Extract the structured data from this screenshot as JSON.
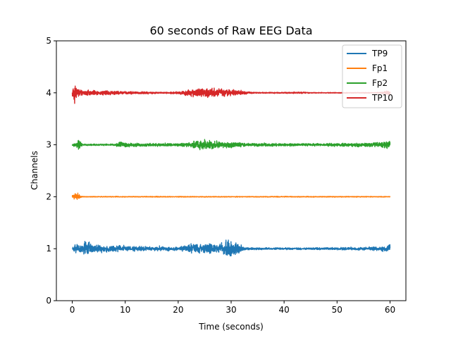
{
  "chart_data": {
    "type": "line",
    "title": "60 seconds of Raw EEG Data",
    "xlabel": "Time (seconds)",
    "ylabel": "Channels",
    "xlim": [
      -3,
      63
    ],
    "ylim": [
      0,
      5
    ],
    "xticks": [
      0,
      10,
      20,
      30,
      40,
      50,
      60
    ],
    "yticks": [
      0,
      1,
      2,
      3,
      4,
      5
    ],
    "grid": false,
    "legend_position": "top-right",
    "series": [
      {
        "name": "TP9",
        "color": "#1f77b4",
        "baseline": 1,
        "envelope": [
          [
            0,
            0.09
          ],
          [
            0.5,
            0.13
          ],
          [
            1,
            0.08
          ],
          [
            2,
            0.12
          ],
          [
            3,
            0.2
          ],
          [
            4,
            0.12
          ],
          [
            5,
            0.1
          ],
          [
            7,
            0.08
          ],
          [
            9,
            0.09
          ],
          [
            10,
            0.07
          ],
          [
            12,
            0.06
          ],
          [
            14,
            0.05
          ],
          [
            16,
            0.07
          ],
          [
            18,
            0.05
          ],
          [
            20,
            0.05
          ],
          [
            22,
            0.1
          ],
          [
            24,
            0.13
          ],
          [
            26,
            0.13
          ],
          [
            28,
            0.12
          ],
          [
            29.8,
            0.24
          ],
          [
            31,
            0.14
          ],
          [
            32,
            0.08
          ],
          [
            33,
            0.03
          ],
          [
            40,
            0.025
          ],
          [
            50,
            0.03
          ],
          [
            55,
            0.04
          ],
          [
            58,
            0.05
          ],
          [
            59.5,
            0.08
          ],
          [
            60,
            0.1
          ]
        ]
      },
      {
        "name": "Fp1",
        "color": "#ff7f0e",
        "baseline": 2,
        "envelope": [
          [
            0,
            0.05
          ],
          [
            0.5,
            0.06
          ],
          [
            1,
            0.12
          ],
          [
            1.5,
            0.03
          ],
          [
            2,
            0.01
          ],
          [
            60,
            0.01
          ]
        ]
      },
      {
        "name": "Fp2",
        "color": "#2ca02c",
        "baseline": 3,
        "envelope": [
          [
            0,
            0.03
          ],
          [
            0.8,
            0.06
          ],
          [
            1.1,
            0.2
          ],
          [
            1.6,
            0.06
          ],
          [
            2,
            0.02
          ],
          [
            8,
            0.02
          ],
          [
            9,
            0.07
          ],
          [
            11,
            0.05
          ],
          [
            14,
            0.04
          ],
          [
            17,
            0.04
          ],
          [
            20,
            0.04
          ],
          [
            22,
            0.06
          ],
          [
            24,
            0.14
          ],
          [
            26,
            0.13
          ],
          [
            28,
            0.08
          ],
          [
            30,
            0.08
          ],
          [
            32,
            0.05
          ],
          [
            35,
            0.04
          ],
          [
            45,
            0.03
          ],
          [
            50,
            0.04
          ],
          [
            55,
            0.05
          ],
          [
            58,
            0.06
          ],
          [
            60,
            0.1
          ]
        ]
      },
      {
        "name": "TP10",
        "color": "#d62728",
        "baseline": 4,
        "envelope": [
          [
            0,
            0.1
          ],
          [
            0.3,
            0.25
          ],
          [
            0.7,
            0.2
          ],
          [
            1.2,
            0.1
          ],
          [
            2,
            0.06
          ],
          [
            3,
            0.07
          ],
          [
            5,
            0.05
          ],
          [
            7,
            0.06
          ],
          [
            9,
            0.04
          ],
          [
            13,
            0.03
          ],
          [
            17,
            0.02
          ],
          [
            20,
            0.03
          ],
          [
            22,
            0.08
          ],
          [
            24,
            0.12
          ],
          [
            26,
            0.12
          ],
          [
            28,
            0.1
          ],
          [
            30,
            0.08
          ],
          [
            32,
            0.05
          ],
          [
            33,
            0.03
          ],
          [
            35,
            0.015
          ],
          [
            44,
            0.02
          ],
          [
            45,
            0.01
          ],
          [
            58,
            0.01
          ],
          [
            59,
            0.04
          ],
          [
            60,
            0.06
          ]
        ]
      }
    ]
  }
}
